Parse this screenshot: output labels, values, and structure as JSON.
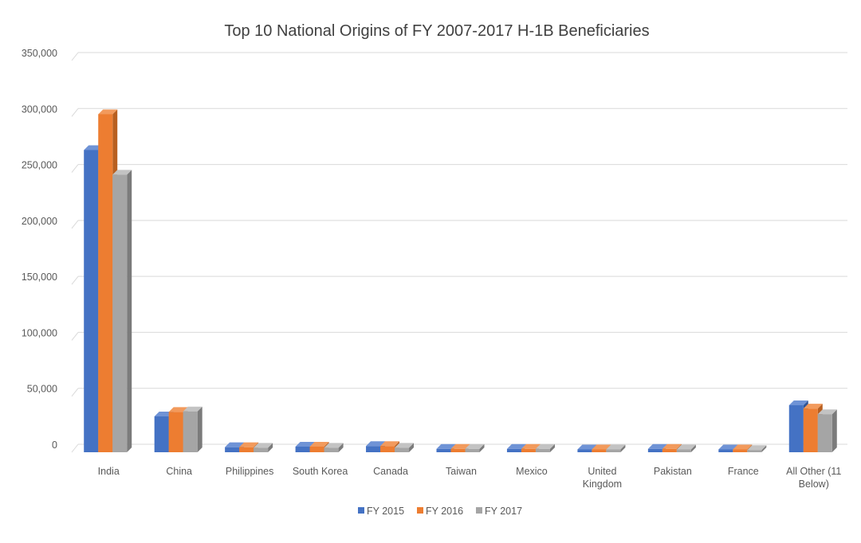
{
  "chart_data": {
    "type": "bar",
    "title": "Top 10 National Origins of FY 2007-2017 H-1B Beneficiaries",
    "xlabel": "",
    "ylabel": "",
    "ylim": [
      0,
      350000
    ],
    "y_ticks": [
      "0",
      "50,000",
      "100,000",
      "150,000",
      "200,000",
      "250,000",
      "300,000",
      "350,000"
    ],
    "y_tick_values": [
      0,
      50000,
      100000,
      150000,
      200000,
      250000,
      300000,
      350000
    ],
    "grid": true,
    "legend_position": "bottom",
    "style": "3d-clustered-column",
    "categories": [
      [
        "India"
      ],
      [
        "China"
      ],
      [
        "Philippines"
      ],
      [
        "South Korea"
      ],
      [
        "Canada"
      ],
      [
        "Taiwan"
      ],
      [
        "Mexico"
      ],
      [
        "United",
        "Kingdom"
      ],
      [
        "Pakistan"
      ],
      [
        "France"
      ],
      [
        "All Other (11",
        "Below)"
      ]
    ],
    "series": [
      {
        "name": "FY 2015",
        "color": "#4472c4",
        "side_color": "#2f5597",
        "top_color": "#6f93d6",
        "values": [
          270000,
          32000,
          4500,
          5000,
          5500,
          3000,
          3000,
          2500,
          3000,
          2500,
          42000
        ]
      },
      {
        "name": "FY 2016",
        "color": "#ed7d31",
        "side_color": "#b85f20",
        "top_color": "#f29a5c",
        "values": [
          302000,
          36000,
          4500,
          5000,
          5500,
          3000,
          3000,
          2500,
          3000,
          2500,
          39000
        ]
      },
      {
        "name": "FY 2017",
        "color": "#a5a5a5",
        "side_color": "#7b7b7b",
        "top_color": "#c3c3c3",
        "values": [
          248000,
          36500,
          4000,
          4000,
          4000,
          3000,
          3000,
          2500,
          2500,
          2000,
          34000
        ]
      }
    ]
  }
}
